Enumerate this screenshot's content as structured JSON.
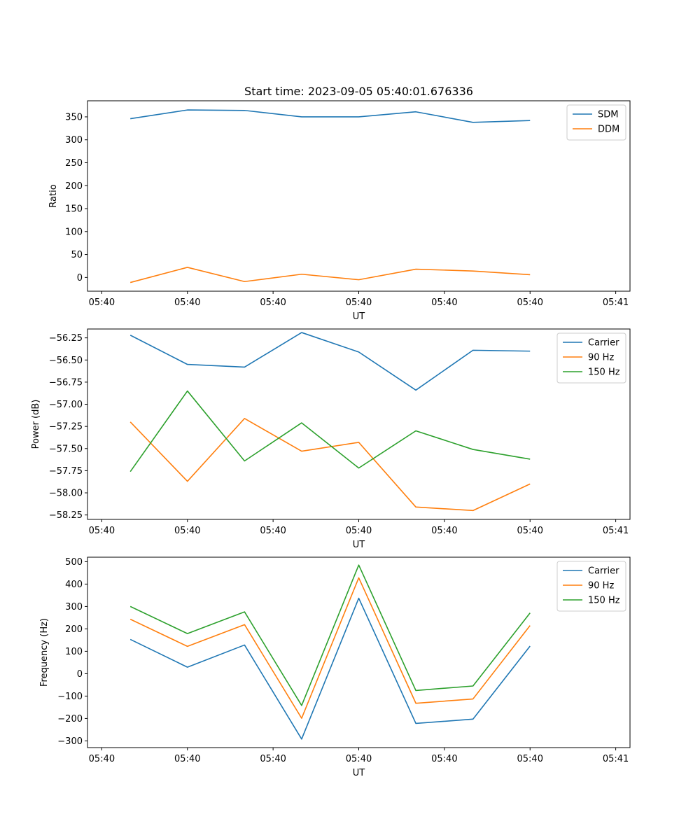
{
  "figure": {
    "title": "Start time: 2023-09-05 05:40:01.676336"
  },
  "chart_data": [
    {
      "type": "line",
      "xlabel": "UT",
      "ylabel": "Ratio",
      "x_tick_labels": [
        "05:40",
        "05:40",
        "05:40",
        "05:40",
        "05:40",
        "05:40",
        "05:40"
      ],
      "x_last_tick_label": "05:41",
      "xlim": [
        -0.75,
        8.75
      ],
      "ylim": [
        -30,
        385
      ],
      "yticks": [
        0,
        50,
        100,
        150,
        200,
        250,
        300,
        350
      ],
      "ytick_labels": [
        "0",
        "50",
        "100",
        "150",
        "200",
        "250",
        "300",
        "350"
      ],
      "legend_position": "top-right",
      "x": [
        0,
        1,
        2,
        3,
        4,
        5,
        6,
        7
      ],
      "series": [
        {
          "name": "SDM",
          "color": "#1f77b4",
          "values": [
            346,
            365,
            364,
            350,
            350,
            361,
            338,
            342
          ]
        },
        {
          "name": "DDM",
          "color": "#ff7f0e",
          "values": [
            -11,
            22,
            -9,
            7,
            -5,
            18,
            14,
            6
          ]
        }
      ]
    },
    {
      "type": "line",
      "xlabel": "UT",
      "ylabel": "Power (dB)",
      "x_tick_labels": [
        "05:40",
        "05:40",
        "05:40",
        "05:40",
        "05:40",
        "05:40",
        "05:40"
      ],
      "x_last_tick_label": "05:41",
      "xlim": [
        -0.75,
        8.75
      ],
      "ylim": [
        -58.3,
        -56.15
      ],
      "yticks": [
        -58.25,
        -58.0,
        -57.75,
        -57.5,
        -57.25,
        -57.0,
        -56.75,
        -56.5,
        -56.25
      ],
      "ytick_labels": [
        "−58.25",
        "−58.00",
        "−57.75",
        "−57.50",
        "−57.25",
        "−57.00",
        "−56.75",
        "−56.50",
        "−56.25"
      ],
      "legend_position": "top-right",
      "x": [
        0,
        1,
        2,
        3,
        4,
        5,
        6,
        7
      ],
      "series": [
        {
          "name": "Carrier",
          "color": "#1f77b4",
          "values": [
            -56.22,
            -56.55,
            -56.58,
            -56.19,
            -56.41,
            -56.84,
            -56.39,
            -56.4
          ]
        },
        {
          "name": "90 Hz",
          "color": "#ff7f0e",
          "values": [
            -57.2,
            -57.87,
            -57.16,
            -57.53,
            -57.43,
            -58.16,
            -58.2,
            -57.9
          ]
        },
        {
          "name": "150 Hz",
          "color": "#2ca02c",
          "values": [
            -57.76,
            -56.85,
            -57.64,
            -57.21,
            -57.72,
            -57.3,
            -57.51,
            -57.62
          ]
        }
      ]
    },
    {
      "type": "line",
      "xlabel": "UT",
      "ylabel": "Frequency (Hz)",
      "x_tick_labels": [
        "05:40",
        "05:40",
        "05:40",
        "05:40",
        "05:40",
        "05:40",
        "05:40"
      ],
      "x_last_tick_label": "05:41",
      "xlim": [
        -0.75,
        8.75
      ],
      "ylim": [
        -330,
        520
      ],
      "yticks": [
        -300,
        -200,
        -100,
        0,
        100,
        200,
        300,
        400,
        500
      ],
      "ytick_labels": [
        "−300",
        "−200",
        "−100",
        "0",
        "100",
        "200",
        "300",
        "400",
        "500"
      ],
      "legend_position": "top-right",
      "x": [
        0,
        1,
        2,
        3,
        4,
        5,
        6,
        7
      ],
      "series": [
        {
          "name": "Carrier",
          "color": "#1f77b4",
          "values": [
            153,
            29,
            128,
            -292,
            337,
            -222,
            -203,
            123
          ]
        },
        {
          "name": "90 Hz",
          "color": "#ff7f0e",
          "values": [
            243,
            122,
            219,
            -199,
            428,
            -132,
            -113,
            215
          ]
        },
        {
          "name": "150 Hz",
          "color": "#2ca02c",
          "values": [
            300,
            179,
            276,
            -142,
            485,
            -75,
            -55,
            271
          ]
        }
      ]
    }
  ]
}
